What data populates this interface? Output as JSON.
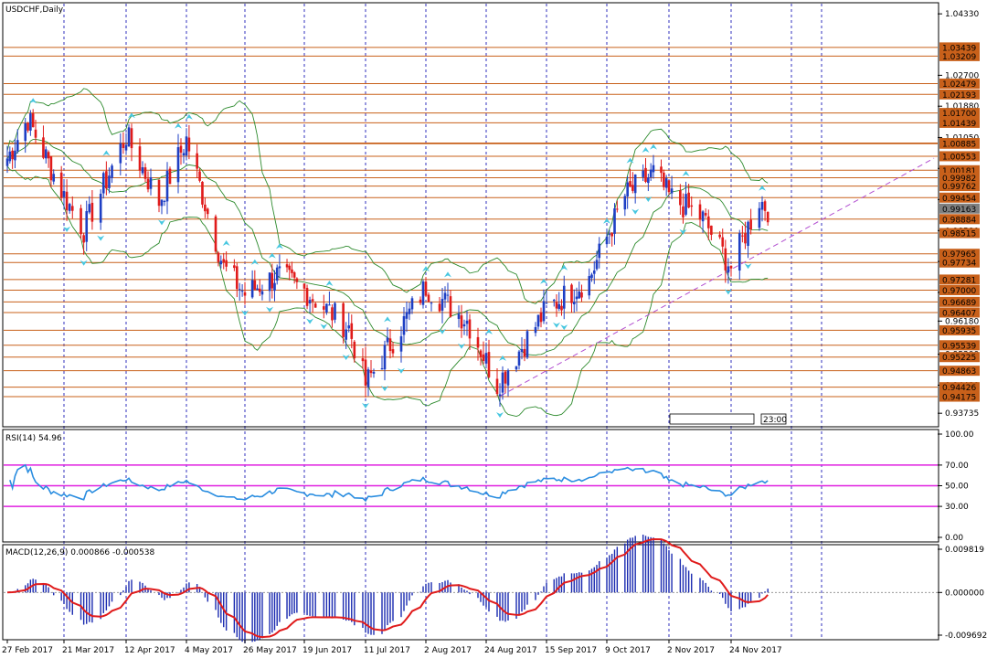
{
  "colors": {
    "bull": "#1e3fc4",
    "bear": "#e01b1b",
    "level": "#c8601a",
    "bollinger": "#2e8b2e",
    "trend": "#b24fd0",
    "rsi": "#2a8de0",
    "rsi_levels": "#e020e0",
    "macd_hist": "#1a2ab0",
    "macd_signal": "#e01b1b",
    "grid": "#1a1ab8",
    "label_box": "#c8601a",
    "current_box": "#7f7f7f"
  },
  "header": {
    "symbol": "USDCHF,Daily"
  },
  "chart_data": [
    {
      "type": "candlestick",
      "title": "USDCHF,Daily",
      "ylim": [
        0.934,
        1.046
      ],
      "y_ticks": [
        "1.04330",
        "1.02700",
        "1.01880",
        "1.01050",
        "1.00230",
        "0.99404",
        "0.98580",
        "0.97760",
        "0.96940",
        "0.96180",
        "0.95300",
        "0.94480",
        "0.93735"
      ],
      "x_labels": [
        "27 Feb 2017",
        "21 Mar 2017",
        "12 Apr 2017",
        "4 May 2017",
        "26 May 2017",
        "19 Jun 2017",
        "11 Jul 2017",
        "2 Aug 2017",
        "24 Aug 2017",
        "15 Sep 2017",
        "9 Oct 2017",
        "2 Nov 2017",
        "24 Nov 2017"
      ],
      "level_labels": [
        "1.03439",
        "1.03209",
        "1.02479",
        "1.02193",
        "1.01700",
        "1.01439",
        "1.00902",
        "1.00885",
        "1.00553",
        "1.00181",
        "0.99982",
        "0.99762",
        "0.99454",
        "0.98884",
        "0.98515",
        "0.97965",
        "0.97734",
        "0.97281",
        "0.97000",
        "0.96689",
        "0.96407",
        "0.95935",
        "0.95539",
        "0.95225",
        "0.94863",
        "0.94426",
        "0.94175"
      ],
      "current_price": "0.99163",
      "timer": "23:00",
      "key_points": [
        {
          "date": "27 Feb 2017",
          "close": 1.005
        },
        {
          "date": "7 Mar 2017",
          "close": 1.0155
        },
        {
          "date": "21 Mar 2017",
          "close": 0.995
        },
        {
          "date": "28 Mar 2017",
          "close": 0.986
        },
        {
          "date": "12 Apr 2017",
          "close": 1.011
        },
        {
          "date": "24 Apr 2017",
          "close": 0.9935
        },
        {
          "date": "4 May 2017",
          "close": 1.01
        },
        {
          "date": "18 May 2017",
          "close": 0.976
        },
        {
          "date": "26 May 2017",
          "close": 0.969
        },
        {
          "date": "8 Jun 2017",
          "close": 0.974
        },
        {
          "date": "19 Jun 2017",
          "close": 0.97
        },
        {
          "date": "5 Jul 2017",
          "close": 0.96
        },
        {
          "date": "11 Jul 2017",
          "close": 0.945
        },
        {
          "date": "2 Aug 2017",
          "close": 0.971
        },
        {
          "date": "17 Aug 2017",
          "close": 0.962
        },
        {
          "date": "28 Aug 2017",
          "close": 0.945
        },
        {
          "date": "15 Sep 2017",
          "close": 0.965
        },
        {
          "date": "2 Oct 2017",
          "close": 0.973
        },
        {
          "date": "16 Oct 2017",
          "close": 0.995
        },
        {
          "date": "27 Oct 2017",
          "close": 1.001
        },
        {
          "date": "2 Nov 2017",
          "close": 0.995
        },
        {
          "date": "14 Nov 2017",
          "close": 0.989
        },
        {
          "date": "24 Nov 2017",
          "close": 0.976
        },
        {
          "date": "4 Dec 2017",
          "close": 0.994
        },
        {
          "date": "7 Dec 2017",
          "close": 0.9916
        }
      ]
    },
    {
      "type": "line",
      "title": "RSI(14) 54.96",
      "ylim": [
        0,
        100
      ],
      "y_ticks": [
        "100.00",
        "70.00",
        "50.00",
        "30.00",
        "0.00"
      ],
      "levels": [
        70,
        50,
        30
      ],
      "last_value": 54.96
    },
    {
      "type": "bar",
      "title": "MACD(12,26,9) 0.000866 -0.000538",
      "ylim": [
        -0.009692,
        0.009819
      ],
      "y_ticks": [
        "0.009819",
        "0.000000",
        "-0.009692"
      ],
      "macd": 0.000866,
      "signal": -0.000538
    }
  ]
}
